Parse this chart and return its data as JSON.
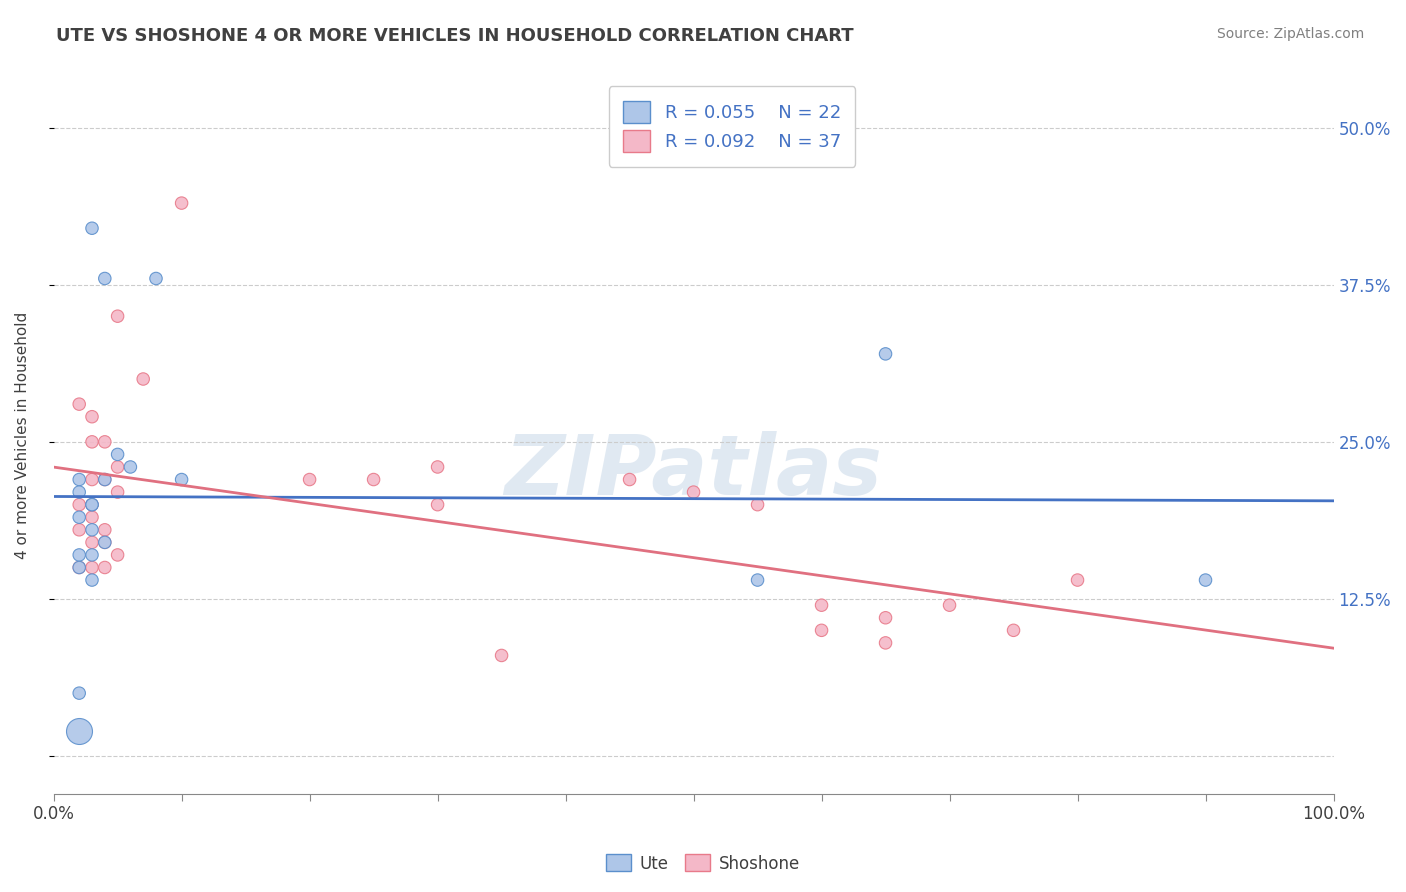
{
  "title": "UTE VS SHOSHONE 4 OR MORE VEHICLES IN HOUSEHOLD CORRELATION CHART",
  "source_text": "Source: ZipAtlas.com",
  "ylabel": "4 or more Vehicles in Household",
  "xlim": [
    0,
    100
  ],
  "ylim": [
    -3,
    54
  ],
  "yticks": [
    0,
    12.5,
    25.0,
    37.5,
    50.0
  ],
  "ytick_right_labels": [
    "",
    "12.5%",
    "25.0%",
    "37.5%",
    "50.0%"
  ],
  "xticks": [
    0,
    10,
    20,
    30,
    40,
    50,
    60,
    70,
    80,
    90,
    100
  ],
  "legend_ute_R": "0.055",
  "legend_ute_N": "22",
  "legend_shoshone_R": "0.092",
  "legend_shoshone_N": "37",
  "legend_label_ute": "Ute",
  "legend_label_shoshone": "Shoshone",
  "ute_color": "#aec6e8",
  "shoshone_color": "#f4b8c8",
  "ute_edge_color": "#5b8fcc",
  "shoshone_edge_color": "#e87a8a",
  "ute_line_color": "#4472c4",
  "shoshone_line_color": "#e07080",
  "background_color": "#ffffff",
  "grid_color": "#cccccc",
  "title_color": "#404040",
  "tick_label_color": "#4472c4",
  "ute_x": [
    3,
    4,
    8,
    6,
    2,
    4,
    2,
    3,
    2,
    3,
    4,
    2,
    3,
    2,
    3,
    2,
    65,
    90,
    3,
    55,
    10,
    5
  ],
  "ute_y": [
    42,
    38,
    38,
    23,
    22,
    22,
    21,
    20,
    19,
    18,
    17,
    16,
    16,
    15,
    14,
    5,
    32,
    14,
    20,
    14,
    22,
    24
  ],
  "ute_size": [
    80,
    80,
    80,
    80,
    80,
    80,
    80,
    80,
    80,
    80,
    80,
    80,
    80,
    80,
    80,
    80,
    80,
    80,
    80,
    80,
    80,
    80
  ],
  "shoshone_x": [
    10,
    5,
    7,
    2,
    3,
    4,
    3,
    5,
    3,
    4,
    5,
    3,
    2,
    3,
    4,
    2,
    3,
    4,
    5,
    4,
    3,
    2,
    20,
    30,
    25,
    45,
    50,
    30,
    55,
    65,
    60,
    70,
    75,
    80,
    60,
    65,
    35
  ],
  "shoshone_y": [
    44,
    35,
    30,
    28,
    27,
    25,
    25,
    23,
    22,
    22,
    21,
    20,
    20,
    19,
    18,
    18,
    17,
    17,
    16,
    15,
    15,
    15,
    22,
    23,
    22,
    22,
    21,
    20,
    20,
    11,
    12,
    12,
    10,
    14,
    10,
    9,
    8
  ],
  "shoshone_size": [
    80,
    80,
    80,
    80,
    80,
    80,
    80,
    80,
    80,
    80,
    80,
    80,
    80,
    80,
    80,
    80,
    80,
    80,
    80,
    80,
    80,
    80,
    80,
    80,
    80,
    80,
    80,
    80,
    80,
    80,
    80,
    80,
    80,
    80,
    80,
    80,
    80
  ],
  "big_ute_x": [
    2
  ],
  "big_ute_y": [
    2
  ],
  "big_ute_size": [
    350
  ],
  "watermark": "ZIPatlas",
  "watermark_color": "#c8d8e8"
}
